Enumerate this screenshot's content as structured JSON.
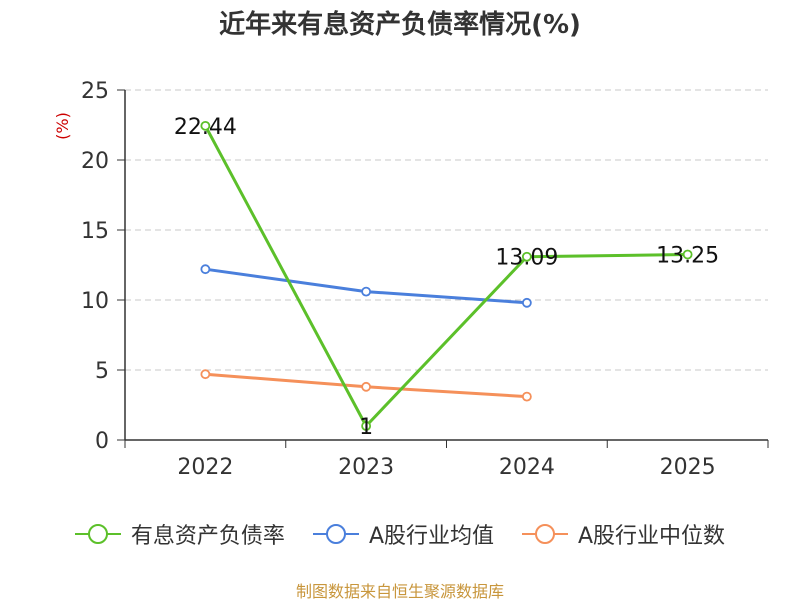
{
  "chart_data": {
    "type": "line",
    "title": "近年来有息资产负债率情况(%)",
    "ylabel": "(%)",
    "xlabel": "",
    "ylim": [
      0,
      25
    ],
    "yticks": [
      0,
      5,
      10,
      15,
      20,
      25
    ],
    "categories": [
      "2022",
      "2023",
      "2024",
      "2025"
    ],
    "series": [
      {
        "name": "有息资产负债率",
        "color": "#5cc02a",
        "values": [
          22.44,
          1,
          13.09,
          13.25
        ],
        "labels": [
          "22.44",
          "1",
          "13.09",
          "13.25"
        ]
      },
      {
        "name": "A股行业均值",
        "color": "#4a7fdc",
        "values": [
          12.2,
          10.6,
          9.8,
          null
        ]
      },
      {
        "name": "A股行业中位数",
        "color": "#f5905a",
        "values": [
          4.7,
          3.8,
          3.1,
          null
        ]
      }
    ],
    "grid": true
  },
  "source": "制图数据来自恒生聚源数据库"
}
